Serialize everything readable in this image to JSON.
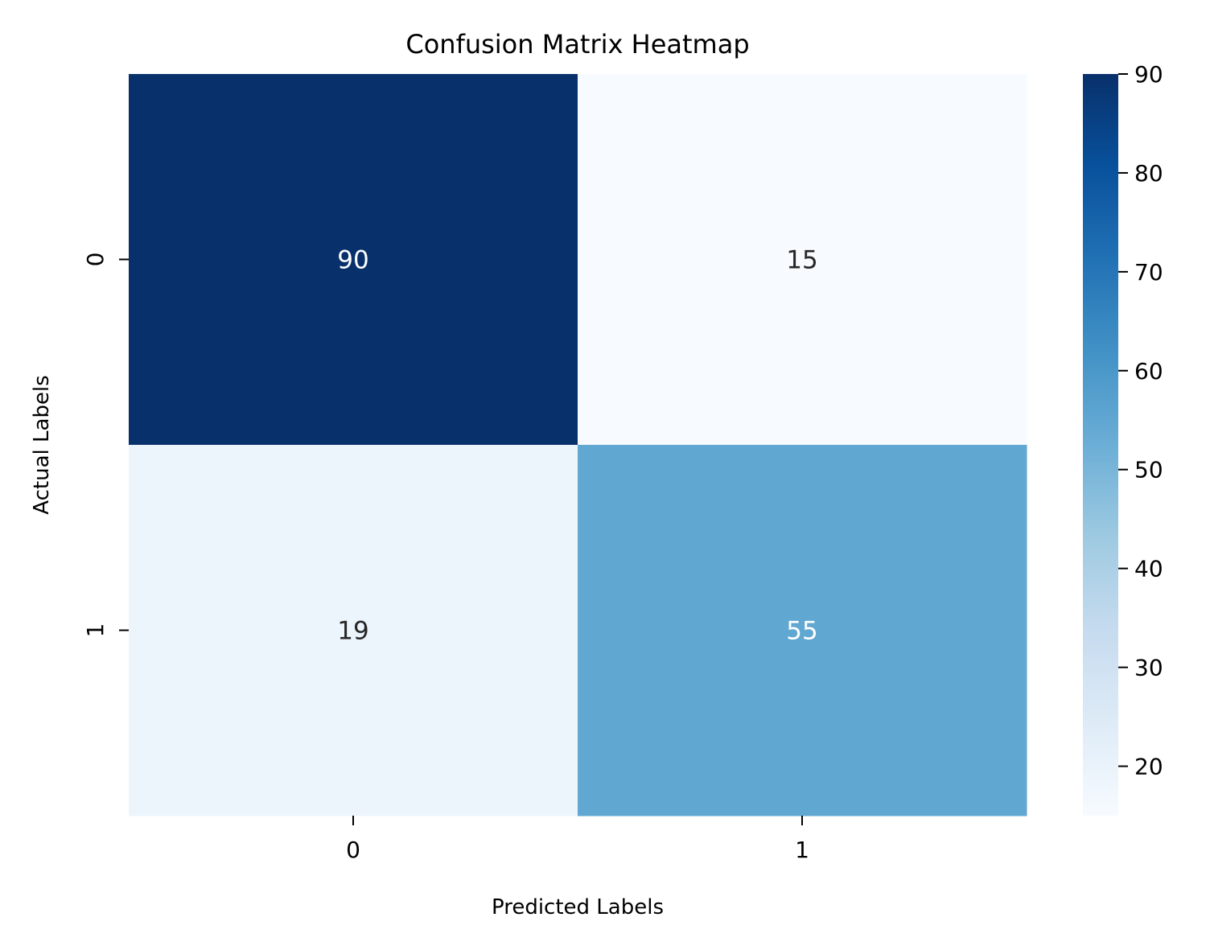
{
  "chart_data": {
    "type": "heatmap",
    "title": "Confusion Matrix Heatmap",
    "xlabel": "Predicted Labels",
    "ylabel": "Actual Labels",
    "x_categories": [
      "0",
      "1"
    ],
    "y_categories": [
      "0",
      "1"
    ],
    "values": [
      [
        90,
        15
      ],
      [
        19,
        55
      ]
    ],
    "colormap": "Blues",
    "colorbar": {
      "range": [
        15,
        90
      ],
      "ticks": [
        20,
        30,
        40,
        50,
        60,
        70,
        80,
        90
      ],
      "location": "right"
    },
    "annotations": true,
    "grid": false
  }
}
